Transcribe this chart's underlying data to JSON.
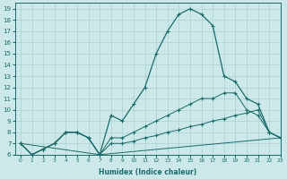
{
  "xlabel": "Humidex (Indice chaleur)",
  "xlim": [
    -0.5,
    23
  ],
  "ylim": [
    6,
    19.5
  ],
  "xticks": [
    0,
    1,
    2,
    3,
    4,
    5,
    6,
    7,
    8,
    9,
    10,
    11,
    12,
    13,
    14,
    15,
    16,
    17,
    18,
    19,
    20,
    21,
    22,
    23
  ],
  "yticks": [
    6,
    7,
    8,
    9,
    10,
    11,
    12,
    13,
    14,
    15,
    16,
    17,
    18,
    19
  ],
  "bg_color": "#cce8e8",
  "line_color": "#1a6b6b",
  "grid_color": "#b0d4d4",
  "curve1_x": [
    0,
    1,
    2,
    3,
    4,
    5,
    6,
    7,
    8,
    9,
    10,
    11,
    12,
    13,
    14,
    15,
    16,
    17,
    18,
    19,
    20,
    21,
    22,
    23
  ],
  "curve1_y": [
    7.0,
    6.0,
    6.5,
    7.0,
    8.0,
    8.0,
    7.5,
    6.0,
    9.5,
    9.0,
    10.5,
    12.0,
    15.0,
    17.0,
    18.5,
    19.0,
    18.5,
    17.5,
    13.0,
    12.5,
    11.0,
    10.5,
    8.0,
    7.5
  ],
  "curve2_x": [
    0,
    1,
    2,
    3,
    4,
    5,
    6,
    7,
    8,
    9,
    10,
    11,
    12,
    13,
    14,
    15,
    16,
    17,
    18,
    19,
    20,
    21,
    22,
    23
  ],
  "curve2_y": [
    7.0,
    6.0,
    6.5,
    7.0,
    8.0,
    8.0,
    7.5,
    6.0,
    7.0,
    7.0,
    7.2,
    7.5,
    7.7,
    8.0,
    8.2,
    8.5,
    8.7,
    9.0,
    9.2,
    9.5,
    9.7,
    10.0,
    8.0,
    7.5
  ],
  "curve3_x": [
    0,
    1,
    2,
    3,
    4,
    5,
    6,
    7,
    8,
    9,
    10,
    11,
    12,
    13,
    14,
    15,
    16,
    17,
    18,
    19,
    20,
    21,
    22,
    23
  ],
  "curve3_y": [
    7.0,
    6.0,
    6.5,
    7.0,
    8.0,
    8.0,
    7.5,
    6.0,
    7.5,
    7.5,
    8.0,
    8.5,
    9.0,
    9.5,
    10.0,
    10.5,
    11.0,
    11.0,
    11.5,
    11.5,
    10.0,
    9.5,
    8.0,
    7.5
  ],
  "curve4_x": [
    0,
    7,
    23
  ],
  "curve4_y": [
    7.0,
    6.0,
    7.5
  ]
}
